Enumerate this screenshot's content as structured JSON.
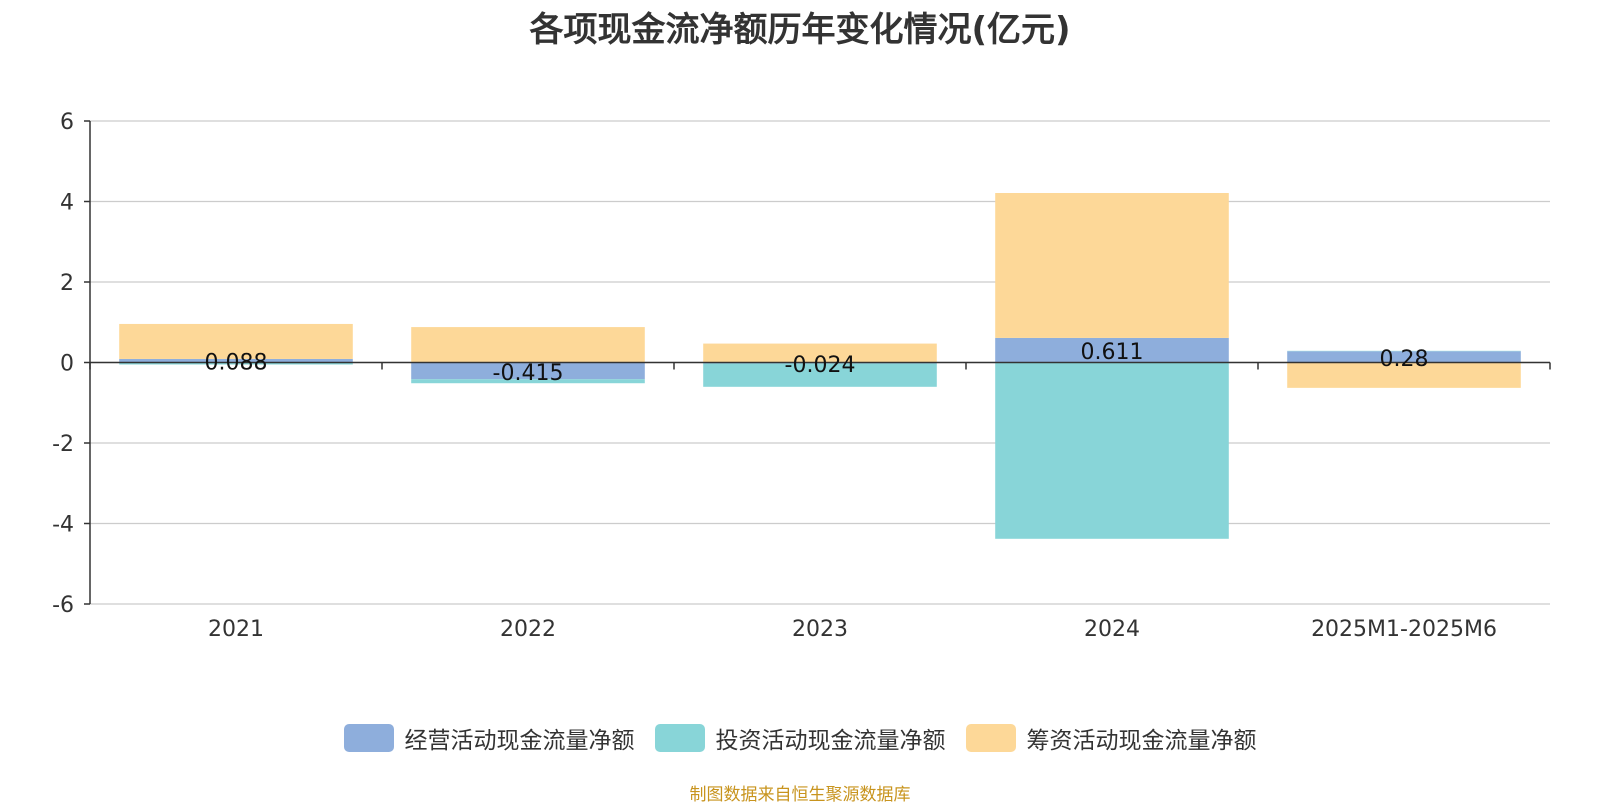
{
  "chart_data": {
    "type": "bar",
    "stacked": true,
    "title": "各项现金流净额历年变化情况(亿元)",
    "categories": [
      "2021",
      "2022",
      "2023",
      "2024",
      "2025M1-2025M6"
    ],
    "series": [
      {
        "name": "经营活动现金流量净额",
        "color": "#8eaedc",
        "values": [
          0.088,
          -0.415,
          -0.024,
          0.611,
          0.28
        ],
        "labels": [
          "0.088",
          "-0.415",
          "-0.024",
          "0.611",
          "0.28"
        ]
      },
      {
        "name": "投资活动现金流量净额",
        "color": "#88d5d8",
        "values": [
          -0.05,
          -0.1,
          -0.58,
          -4.38,
          0.01
        ]
      },
      {
        "name": "筹资活动现金流量净额",
        "color": "#fdd898",
        "values": [
          0.87,
          0.88,
          0.47,
          3.6,
          -0.63
        ]
      }
    ],
    "ylim": [
      -6,
      6
    ],
    "yticks": [
      -6,
      -4,
      -2,
      0,
      2,
      4,
      6
    ],
    "grid": true,
    "legend_position": "bottom"
  },
  "source": "制图数据来自恒生聚源数据库"
}
